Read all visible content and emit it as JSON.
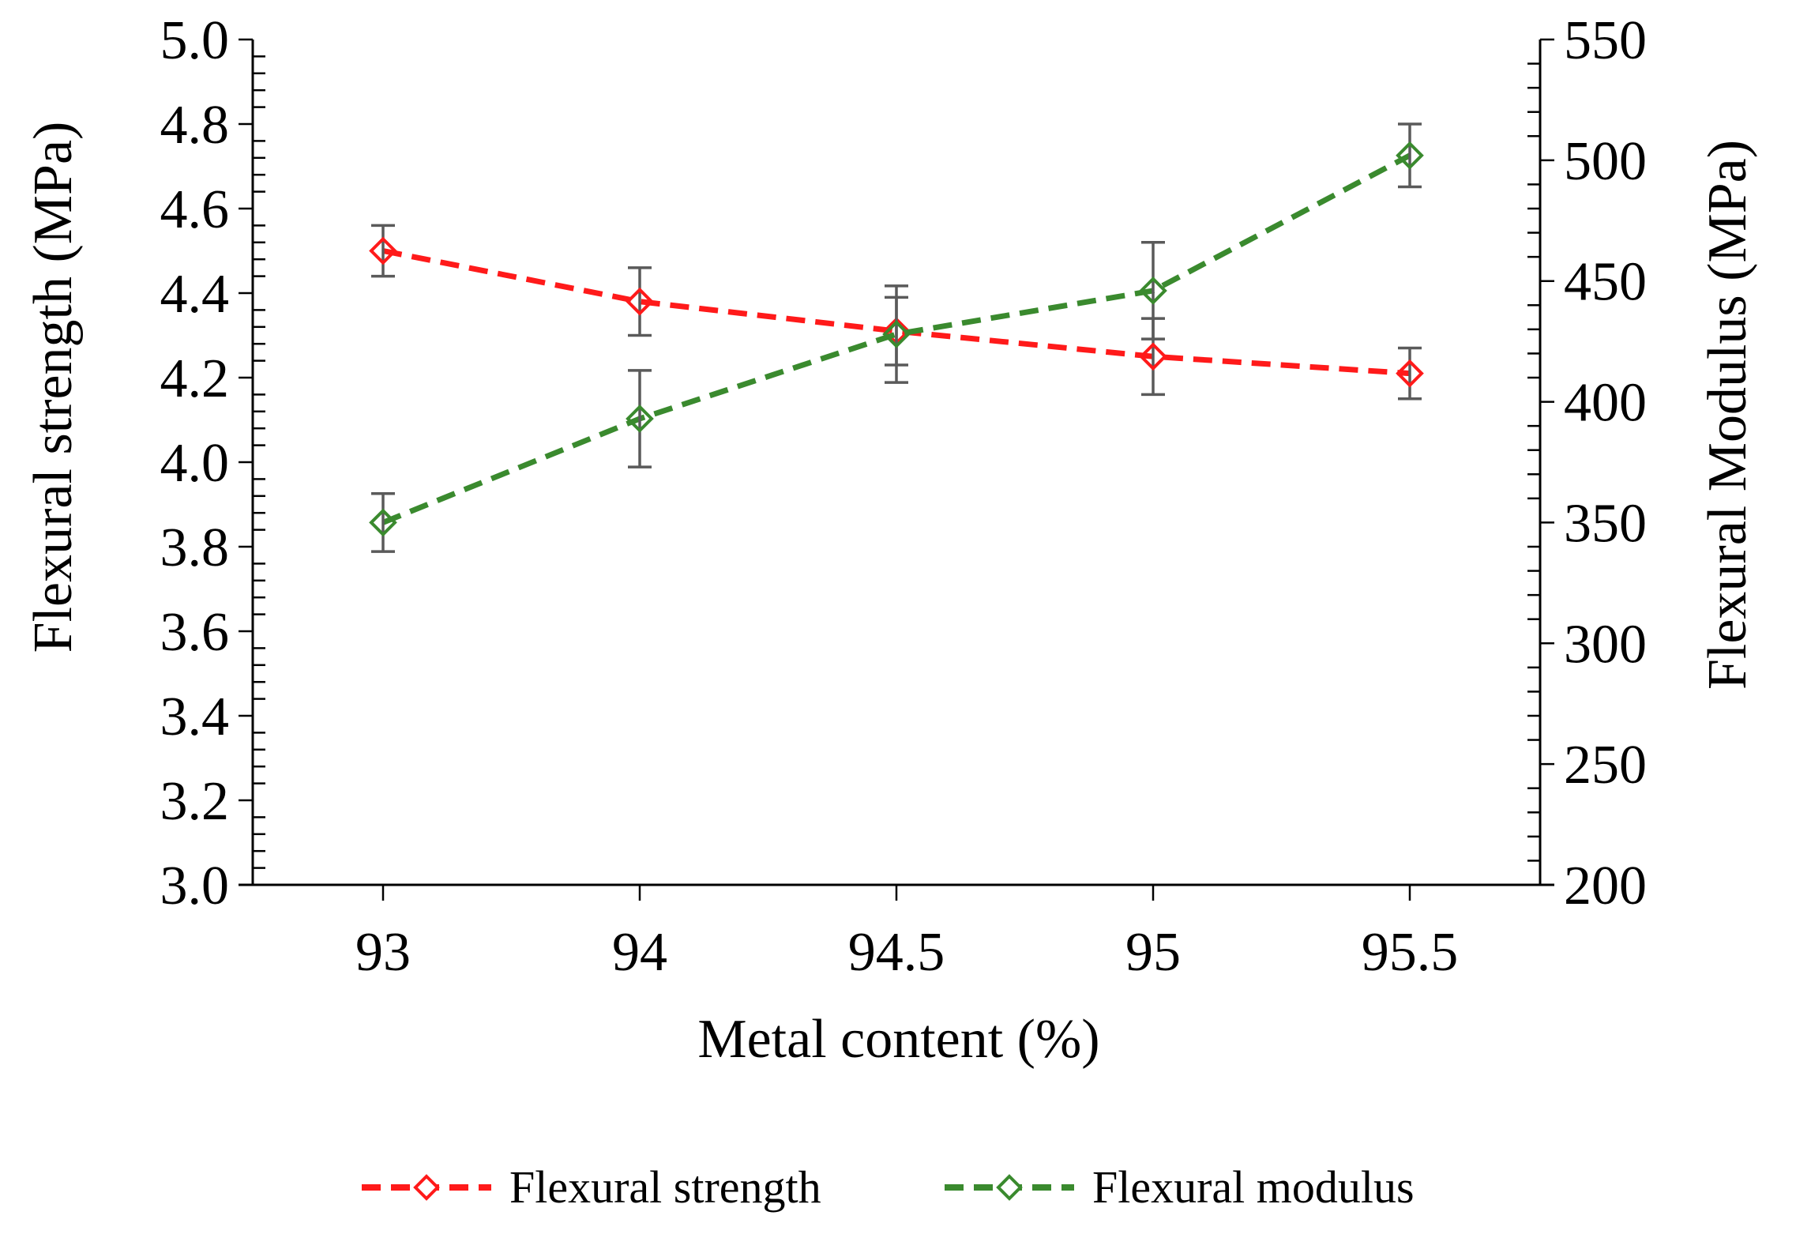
{
  "chart_data": {
    "type": "line",
    "x_axis": {
      "label": "Metal content (%)",
      "categories": [
        "93",
        "94",
        "94.5",
        "95",
        "95.5"
      ]
    },
    "y_axis_left": {
      "label": "Flexural strength (MPa)",
      "range": [
        3.0,
        5.0
      ],
      "ticks": [
        "3.0",
        "3.2",
        "3.4",
        "3.6",
        "3.8",
        "4.0",
        "4.2",
        "4.4",
        "4.6",
        "4.8",
        "5.0"
      ]
    },
    "y_axis_right": {
      "label": "Flexural Modulus (MPa)",
      "range": [
        200,
        550
      ],
      "ticks": [
        "200",
        "250",
        "300",
        "350",
        "400",
        "450",
        "500",
        "550"
      ]
    },
    "series": [
      {
        "name": "Flexural strength",
        "axis": "left",
        "color": "#ff1a1a",
        "line_style": "dashed",
        "marker": "diamond-open",
        "values": [
          4.5,
          4.38,
          4.31,
          4.25,
          4.21
        ],
        "errors": [
          0.06,
          0.08,
          0.08,
          0.09,
          0.06
        ]
      },
      {
        "name": "Flexural modulus",
        "axis": "right",
        "color": "#3a8a2e",
        "line_style": "dashed",
        "marker": "diamond-open",
        "values": [
          350,
          393,
          428,
          446,
          502
        ],
        "errors": [
          12,
          20,
          20,
          20,
          13
        ]
      }
    ],
    "error_bar_color": "#5a5a5a",
    "legend": {
      "position": "bottom-center"
    },
    "grid": false
  }
}
